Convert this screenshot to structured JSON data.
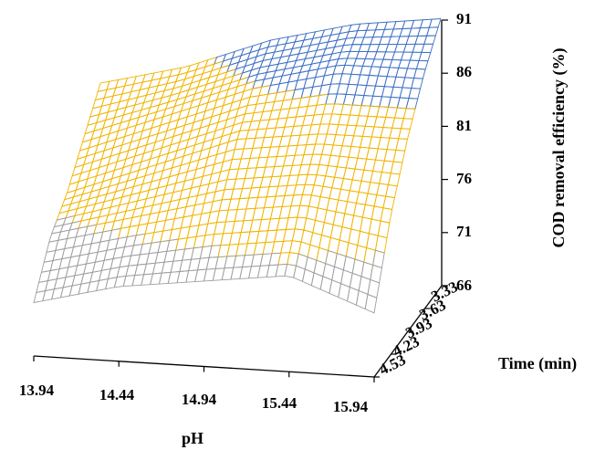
{
  "chart_data": {
    "type": "surface",
    "zlabel": "COD removal efficiency (%)",
    "xlabel": "pH",
    "ylabel": "Time (min)",
    "x_ticks": [
      "13.94",
      "14.44",
      "14.94",
      "15.44",
      "15.94"
    ],
    "y_ticks": [
      "3.33",
      "3.63",
      "3.93",
      "4.23",
      "4.53"
    ],
    "z_ticks": [
      "66",
      "71",
      "76",
      "81",
      "86",
      "91"
    ],
    "xlim": [
      13.94,
      15.94
    ],
    "ylim": [
      3.33,
      4.53
    ],
    "zlim": [
      66,
      91
    ],
    "surface": {
      "x": [
        13.94,
        14.44,
        14.94,
        15.44,
        15.94
      ],
      "y": [
        3.33,
        3.63,
        3.93,
        4.23,
        4.53
      ],
      "z": [
        [
          83,
          85,
          88,
          90,
          91
        ],
        [
          80,
          83,
          86,
          88,
          88
        ],
        [
          77,
          80,
          83,
          84,
          84
        ],
        [
          75,
          77,
          79,
          80,
          79
        ],
        [
          71,
          73,
          74,
          75,
          72
        ]
      ]
    },
    "color_bands": [
      {
        "range": [
          66,
          71
        ],
        "color": "#e8773a"
      },
      {
        "range": [
          71,
          76
        ],
        "color": "#9e9e9e"
      },
      {
        "range": [
          76,
          86
        ],
        "color": "#f0b400"
      },
      {
        "range": [
          86,
          91
        ],
        "color": "#3e6fc2"
      }
    ]
  }
}
